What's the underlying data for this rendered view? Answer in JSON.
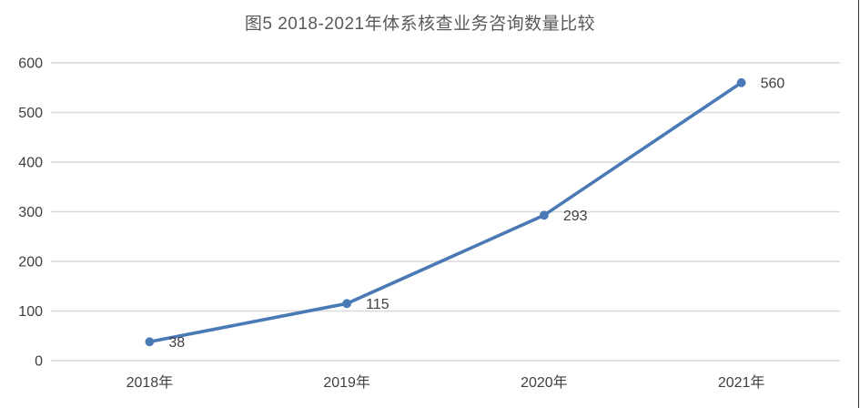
{
  "chart_data": {
    "type": "line",
    "title": "图5 2018-2021年体系核查业务咨询数量比较",
    "categories": [
      "2018年",
      "2019年",
      "2020年",
      "2021年"
    ],
    "values": [
      38,
      115,
      293,
      560
    ],
    "data_labels": [
      "38",
      "115",
      "293",
      "560"
    ],
    "xlabel": "",
    "ylabel": "",
    "ylim": [
      0,
      600
    ],
    "ytick_interval": 100,
    "ytick_labels": [
      "0",
      "100",
      "200",
      "300",
      "400",
      "500",
      "600"
    ],
    "legend": "none",
    "grid": "horizontal-only",
    "colors": {
      "line": "#4A7AB5",
      "marker": "#4A7AB5",
      "gridline": "#D9D9D9",
      "tick_label": "#404040",
      "data_label": "#404040",
      "title": "#595959",
      "background": "#FFFFFF",
      "page_edge": "#303030"
    }
  }
}
